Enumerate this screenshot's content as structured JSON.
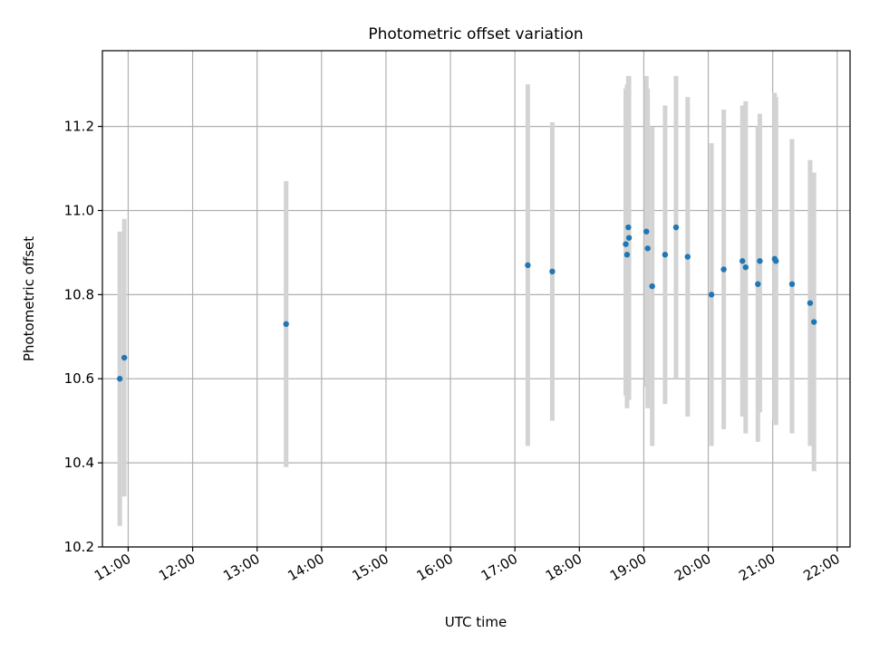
{
  "chart_data": {
    "type": "scatter",
    "title": "Photometric offset variation",
    "xlabel": "UTC time",
    "ylabel": "Photometric offset",
    "x_unit": "hours UTC (decimal)",
    "xlim": [
      10.6,
      22.2
    ],
    "ylim": [
      10.2,
      11.38
    ],
    "xticks": [
      11,
      12,
      13,
      14,
      15,
      16,
      17,
      18,
      19,
      20,
      21,
      22
    ],
    "xtick_labels": [
      "11:00",
      "12:00",
      "13:00",
      "14:00",
      "15:00",
      "16:00",
      "17:00",
      "18:00",
      "19:00",
      "20:00",
      "21:00",
      "22:00"
    ],
    "yticks": [
      10.2,
      10.4,
      10.6,
      10.8,
      11.0,
      11.2
    ],
    "ytick_labels": [
      "10.2",
      "10.4",
      "10.6",
      "10.8",
      "11.0",
      "11.2"
    ],
    "grid": true,
    "colors": {
      "point": "#1f77b4",
      "errorbar": "#d3d3d3",
      "grid": "#b0b0b0"
    },
    "series": [
      {
        "points": [
          {
            "x": 10.87,
            "y": 10.6,
            "ylo": 10.25,
            "yhi": 10.95
          },
          {
            "x": 10.94,
            "y": 10.65,
            "ylo": 10.32,
            "yhi": 10.98
          },
          {
            "x": 13.45,
            "y": 10.73,
            "ylo": 10.39,
            "yhi": 11.07
          },
          {
            "x": 17.2,
            "y": 10.87,
            "ylo": 10.44,
            "yhi": 11.3
          },
          {
            "x": 17.58,
            "y": 10.855,
            "ylo": 10.5,
            "yhi": 11.21
          },
          {
            "x": 18.72,
            "y": 10.92,
            "ylo": 10.56,
            "yhi": 11.29
          },
          {
            "x": 18.74,
            "y": 10.895,
            "ylo": 10.53,
            "yhi": 11.3
          },
          {
            "x": 18.77,
            "y": 10.935,
            "ylo": 10.55,
            "yhi": 11.32
          },
          {
            "x": 18.76,
            "y": 10.96,
            "ylo": 10.6,
            "yhi": 11.32
          },
          {
            "x": 19.04,
            "y": 10.95,
            "ylo": 10.58,
            "yhi": 11.32
          },
          {
            "x": 19.06,
            "y": 10.91,
            "ylo": 10.53,
            "yhi": 11.29
          },
          {
            "x": 19.13,
            "y": 10.82,
            "ylo": 10.44,
            "yhi": 11.2
          },
          {
            "x": 19.33,
            "y": 10.895,
            "ylo": 10.54,
            "yhi": 11.25
          },
          {
            "x": 19.5,
            "y": 10.96,
            "ylo": 10.6,
            "yhi": 11.32
          },
          {
            "x": 19.68,
            "y": 10.89,
            "ylo": 10.51,
            "yhi": 11.27
          },
          {
            "x": 20.05,
            "y": 10.8,
            "ylo": 10.44,
            "yhi": 11.16
          },
          {
            "x": 20.24,
            "y": 10.86,
            "ylo": 10.48,
            "yhi": 11.24
          },
          {
            "x": 20.53,
            "y": 10.88,
            "ylo": 10.51,
            "yhi": 11.25
          },
          {
            "x": 20.58,
            "y": 10.865,
            "ylo": 10.47,
            "yhi": 11.26
          },
          {
            "x": 20.77,
            "y": 10.825,
            "ylo": 10.45,
            "yhi": 11.2
          },
          {
            "x": 20.8,
            "y": 10.88,
            "ylo": 10.52,
            "yhi": 11.23
          },
          {
            "x": 21.03,
            "y": 10.885,
            "ylo": 10.5,
            "yhi": 11.28
          },
          {
            "x": 21.05,
            "y": 10.88,
            "ylo": 10.49,
            "yhi": 11.27
          },
          {
            "x": 21.3,
            "y": 10.825,
            "ylo": 10.47,
            "yhi": 11.17
          },
          {
            "x": 21.58,
            "y": 10.78,
            "ylo": 10.44,
            "yhi": 11.12
          },
          {
            "x": 21.64,
            "y": 10.735,
            "ylo": 10.38,
            "yhi": 11.09
          }
        ]
      }
    ]
  }
}
